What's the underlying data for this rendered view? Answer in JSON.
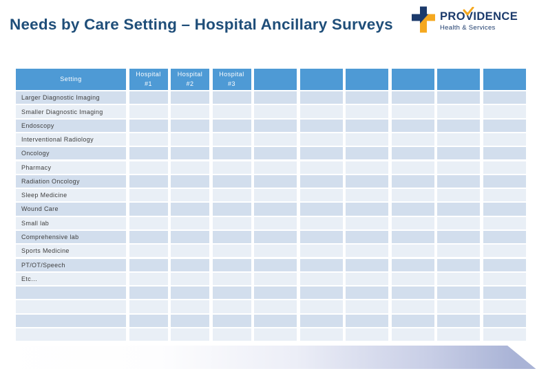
{
  "slide": {
    "title": "Needs by Care Setting – Hospital Ancillary Surveys"
  },
  "logo": {
    "name": "PROVIDENCE",
    "tagline": "Health & Services",
    "icons": {
      "cross": "providence-cross-icon",
      "check": "providence-check-icon"
    }
  },
  "colors": {
    "title_text": "#1F4E79",
    "logo_navy": "#1B3A6B",
    "logo_orange": "#F5A81F",
    "header_bg": "#4E9AD5",
    "header_text": "#FFFFFF",
    "band_dark": "#D2DEED",
    "band_light": "#E9EFF6",
    "cell_text": "#3D3D3D",
    "accent_band": "#A9B3D6"
  },
  "table": {
    "header": [
      "Setting",
      "Hospital\n#1",
      "Hospital\n#2",
      "Hospital\n#3",
      "",
      "",
      "",
      "",
      "",
      ""
    ],
    "rows": [
      "Larger Diagnostic Imaging",
      "Smaller Diagnostic Imaging",
      "Endoscopy",
      "Interventional Radiology",
      "Oncology",
      "Pharmacy",
      "Radiation Oncology",
      "Sleep Medicine",
      "Wound Care",
      "Small lab",
      "Comprehensive lab",
      "Sports Medicine",
      "PT/OT/Speech",
      "Etc…",
      "",
      "",
      "",
      ""
    ]
  }
}
